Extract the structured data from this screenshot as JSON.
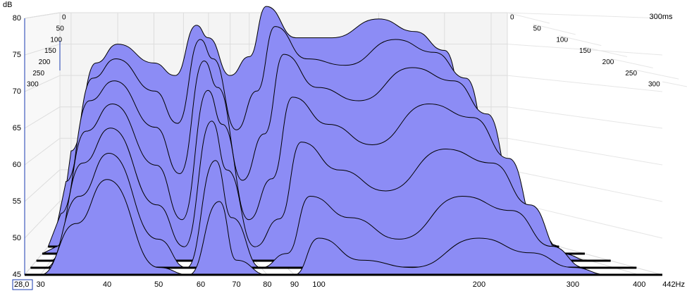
{
  "chart_data": {
    "type": "waterfall",
    "y_label": "dB",
    "x": [
      30,
      35,
      40,
      50,
      57,
      65,
      70,
      80,
      90,
      100,
      120,
      150,
      200,
      250,
      300,
      350,
      400
    ],
    "xlim": [
      28,
      442
    ],
    "xticks": [
      {
        "value": 28,
        "label": "28,0"
      },
      30,
      40,
      50,
      60,
      70,
      80,
      90,
      100,
      200,
      300,
      400,
      {
        "value": 442,
        "label": "442Hz"
      }
    ],
    "log_x": true,
    "ylim": [
      45,
      80
    ],
    "yticks": [
      45,
      50,
      55,
      60,
      65,
      70,
      75,
      80
    ],
    "zlim": [
      0,
      300
    ],
    "zticks": [
      0,
      50,
      100,
      150,
      200,
      250,
      300
    ],
    "z_label": "300ms",
    "color": "#8c8cf5",
    "grid": true,
    "series": [
      {
        "time": 0,
        "values": [
          58,
          72,
          75,
          72,
          70,
          78,
          76,
          70,
          73,
          81,
          76,
          76,
          79,
          77,
          74,
          62,
          50
        ]
      },
      {
        "time": 50,
        "values": [
          54,
          70,
          73,
          68,
          63,
          76,
          73,
          62,
          68,
          78,
          73,
          72,
          76,
          74,
          70,
          57,
          48
        ]
      },
      {
        "time": 100,
        "values": [
          50,
          67,
          70,
          63,
          56,
          73,
          69,
          55,
          62,
          74,
          69,
          67,
          72,
          70,
          65,
          52,
          46
        ]
      },
      {
        "time": 150,
        "values": [
          46,
          63,
          67,
          58,
          50,
          69,
          64,
          50,
          56,
          68,
          64,
          61,
          67,
          65,
          59,
          48,
          45
        ]
      },
      {
        "time": 200,
        "values": [
          45,
          59,
          64,
          53,
          47,
          65,
          58,
          47,
          51,
          62,
          58,
          55,
          61,
          59,
          53,
          46,
          45
        ]
      },
      {
        "time": 250,
        "values": [
          45,
          55,
          61,
          49,
          45,
          60,
          52,
          45,
          47,
          55,
          52,
          49,
          55,
          53,
          48,
          45,
          45
        ]
      },
      {
        "time": 300,
        "values": [
          45,
          52,
          58,
          46,
          45,
          55,
          47,
          45,
          45,
          50,
          47,
          46,
          50,
          48,
          46,
          45,
          45
        ]
      }
    ]
  }
}
